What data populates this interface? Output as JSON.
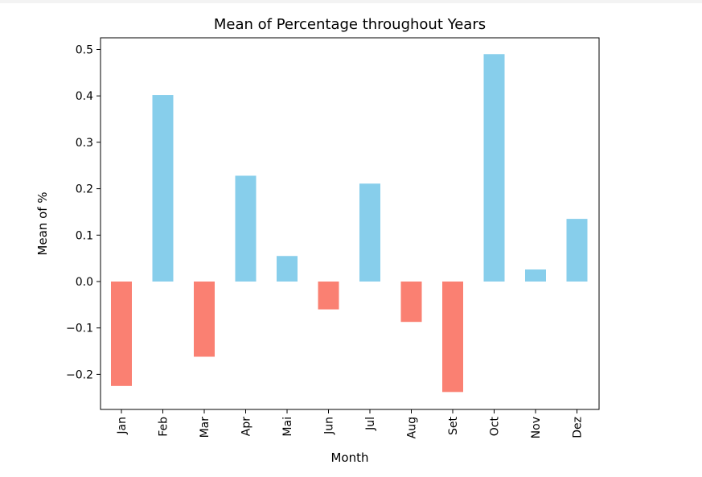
{
  "chart_data": {
    "type": "bar",
    "title": "Mean of Percentage throughout Years",
    "xlabel": "Month",
    "ylabel": "Mean of %",
    "categories": [
      "Jan",
      "Feb",
      "Mar",
      "Apr",
      "Mai",
      "Jun",
      "Jul",
      "Aug",
      "Set",
      "Oct",
      "Nov",
      "Dez"
    ],
    "values": [
      -0.225,
      0.402,
      -0.162,
      0.228,
      0.055,
      -0.06,
      0.211,
      -0.087,
      -0.238,
      0.49,
      0.026,
      0.135
    ],
    "ylim": [
      -0.28,
      0.53
    ],
    "yticks": [
      -0.2,
      -0.1,
      0.0,
      0.1,
      0.2,
      0.3,
      0.4,
      0.5
    ],
    "ytick_labels": [
      "−0.2",
      "−0.1",
      "0.0",
      "0.1",
      "0.2",
      "0.3",
      "0.4",
      "0.5"
    ],
    "grid": false,
    "legend": "none",
    "colors": {
      "positive": "#87ceeb",
      "negative": "#fa8072"
    }
  }
}
